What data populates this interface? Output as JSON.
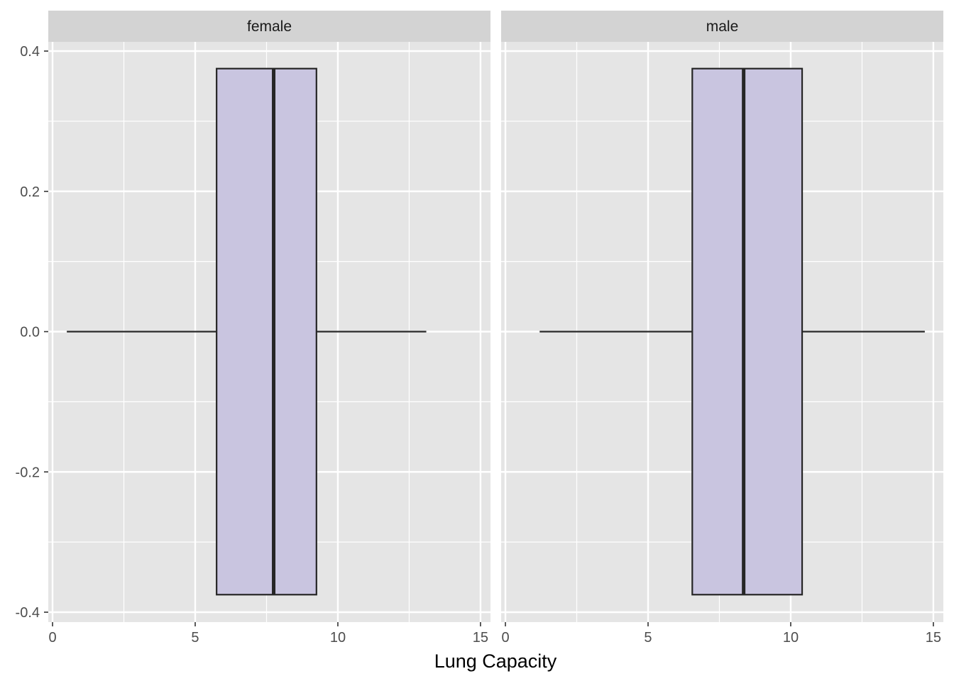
{
  "chart_data": {
    "type": "boxplot",
    "orientation": "horizontal",
    "xlabel": "Lung Capacity",
    "ylabel": "",
    "xlim": [
      -0.15,
      15.35
    ],
    "ylim": [
      -0.4,
      0.4
    ],
    "x_ticks": [
      0,
      5,
      10,
      15
    ],
    "x_tick_labels": [
      "0",
      "5",
      "10",
      "15"
    ],
    "y_ticks": [
      0.4,
      0.2,
      0.0,
      -0.2,
      -0.4
    ],
    "y_tick_labels": [
      "0.4",
      "0.2",
      "0.0",
      "-0.2",
      "-0.4"
    ],
    "grid": true,
    "box_y_range": [
      -0.375,
      0.375
    ],
    "colors": {
      "panel_bg": "#e5e5e5",
      "strip_bg": "#d3d3d3",
      "grid": "#ffffff",
      "box_fill": "#c9c5e0",
      "box_stroke": "#262626"
    },
    "panels": [
      {
        "label": "female",
        "whisker_low": 0.5,
        "q1": 5.75,
        "median": 7.75,
        "q3": 9.25,
        "whisker_high": 13.1
      },
      {
        "label": "male",
        "whisker_low": 1.2,
        "q1": 6.55,
        "median": 8.35,
        "q3": 10.4,
        "whisker_high": 14.7
      }
    ]
  }
}
